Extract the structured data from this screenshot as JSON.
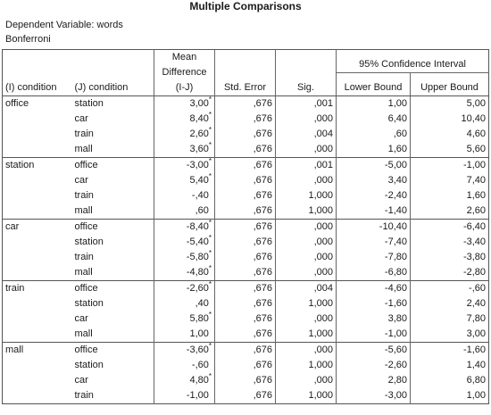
{
  "title": "Multiple Comparisons",
  "dependent_variable": "Dependent Variable: words",
  "method": "Bonferroni",
  "headers": {
    "i_condition": "(I) condition",
    "j_condition": "(J) condition",
    "mean_diff_line1": "Mean",
    "mean_diff_line2": "Difference",
    "mean_diff_line3": "(I-J)",
    "std_error": "Std. Error",
    "sig": "Sig.",
    "ci": "95% Confidence Interval",
    "lower": "Lower Bound",
    "upper": "Upper Bound"
  },
  "groups": [
    {
      "i": "office",
      "rows": [
        {
          "j": "station",
          "md": "3,00",
          "star": true,
          "se": ",676",
          "sig": ",001",
          "lo": "1,00",
          "hi": "5,00"
        },
        {
          "j": "car",
          "md": "8,40",
          "star": true,
          "se": ",676",
          "sig": ",000",
          "lo": "6,40",
          "hi": "10,40"
        },
        {
          "j": "train",
          "md": "2,60",
          "star": true,
          "se": ",676",
          "sig": ",004",
          "lo": ",60",
          "hi": "4,60"
        },
        {
          "j": "mall",
          "md": "3,60",
          "star": true,
          "se": ",676",
          "sig": ",000",
          "lo": "1,60",
          "hi": "5,60"
        }
      ]
    },
    {
      "i": "station",
      "rows": [
        {
          "j": "office",
          "md": "-3,00",
          "star": true,
          "se": ",676",
          "sig": ",001",
          "lo": "-5,00",
          "hi": "-1,00"
        },
        {
          "j": "car",
          "md": "5,40",
          "star": true,
          "se": ",676",
          "sig": ",000",
          "lo": "3,40",
          "hi": "7,40"
        },
        {
          "j": "train",
          "md": "-,40",
          "star": false,
          "se": ",676",
          "sig": "1,000",
          "lo": "-2,40",
          "hi": "1,60"
        },
        {
          "j": "mall",
          "md": ",60",
          "star": false,
          "se": ",676",
          "sig": "1,000",
          "lo": "-1,40",
          "hi": "2,60"
        }
      ]
    },
    {
      "i": "car",
      "rows": [
        {
          "j": "office",
          "md": "-8,40",
          "star": true,
          "se": ",676",
          "sig": ",000",
          "lo": "-10,40",
          "hi": "-6,40"
        },
        {
          "j": "station",
          "md": "-5,40",
          "star": true,
          "se": ",676",
          "sig": ",000",
          "lo": "-7,40",
          "hi": "-3,40"
        },
        {
          "j": "train",
          "md": "-5,80",
          "star": true,
          "se": ",676",
          "sig": ",000",
          "lo": "-7,80",
          "hi": "-3,80"
        },
        {
          "j": "mall",
          "md": "-4,80",
          "star": true,
          "se": ",676",
          "sig": ",000",
          "lo": "-6,80",
          "hi": "-2,80"
        }
      ]
    },
    {
      "i": "train",
      "rows": [
        {
          "j": "office",
          "md": "-2,60",
          "star": true,
          "se": ",676",
          "sig": ",004",
          "lo": "-4,60",
          "hi": "-,60"
        },
        {
          "j": "station",
          "md": ",40",
          "star": false,
          "se": ",676",
          "sig": "1,000",
          "lo": "-1,60",
          "hi": "2,40"
        },
        {
          "j": "car",
          "md": "5,80",
          "star": true,
          "se": ",676",
          "sig": ",000",
          "lo": "3,80",
          "hi": "7,80"
        },
        {
          "j": "mall",
          "md": "1,00",
          "star": false,
          "se": ",676",
          "sig": "1,000",
          "lo": "-1,00",
          "hi": "3,00"
        }
      ]
    },
    {
      "i": "mall",
      "rows": [
        {
          "j": "office",
          "md": "-3,60",
          "star": true,
          "se": ",676",
          "sig": ",000",
          "lo": "-5,60",
          "hi": "-1,60"
        },
        {
          "j": "station",
          "md": "-,60",
          "star": false,
          "se": ",676",
          "sig": "1,000",
          "lo": "-2,60",
          "hi": "1,40"
        },
        {
          "j": "car",
          "md": "4,80",
          "star": true,
          "se": ",676",
          "sig": ",000",
          "lo": "2,80",
          "hi": "6,80"
        },
        {
          "j": "train",
          "md": "-1,00",
          "star": false,
          "se": ",676",
          "sig": "1,000",
          "lo": "-3,00",
          "hi": "1,00"
        }
      ]
    }
  ],
  "star_symbol": "*"
}
